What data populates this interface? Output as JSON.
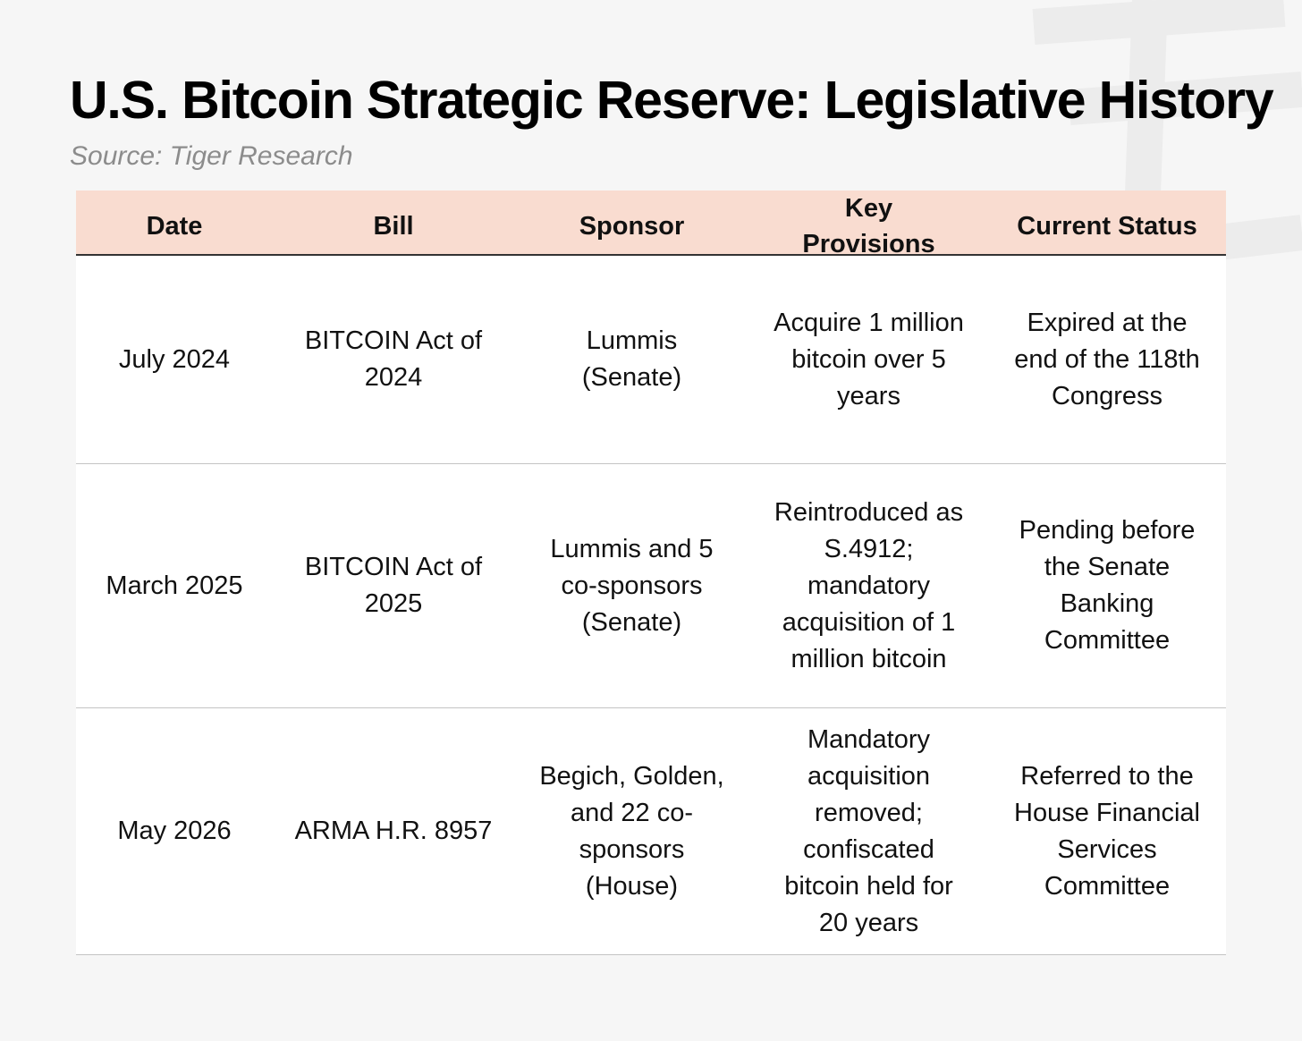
{
  "header": {
    "title": "U.S. Bitcoin Strategic Reserve: Legislative History",
    "source": "Source: Tiger Research"
  },
  "table": {
    "columns": [
      "Date",
      "Bill",
      "Sponsor",
      "Key Provisions",
      "Current Status"
    ],
    "rows": [
      [
        "July 2024",
        "BITCOIN Act of 2024",
        "Lummis (Senate)",
        "Acquire 1 million bitcoin over 5 years",
        "Expired at the end of the 118th Congress"
      ],
      [
        "March 2025",
        "BITCOIN Act of 2025",
        "Lummis and 5 co-sponsors (Senate)",
        "Reintroduced as S.4912; mandatory acquisition of 1 million bitcoin",
        "Pending before the Senate Banking Committee"
      ],
      [
        "May 2026",
        "ARMA H.R. 8957",
        "Begich, Golden, and 22 co-sponsors (House)",
        "Mandatory acquisition removed; confiscated bitcoin held for 20 years",
        "Referred to the House Financial Services Committee"
      ]
    ]
  }
}
